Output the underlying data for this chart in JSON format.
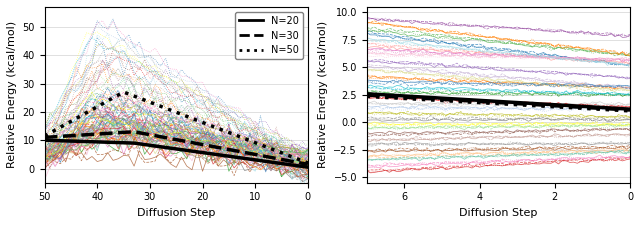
{
  "ylabel": "Relative Energy (kcal/mol)",
  "xlabel": "Diffusion Step",
  "left_xlim": [
    50,
    0
  ],
  "left_ylim": [
    -5,
    57
  ],
  "left_yticks": [
    0,
    10,
    20,
    30,
    40,
    50
  ],
  "left_xticks": [
    50,
    40,
    30,
    20,
    10,
    0
  ],
  "right_xlim": [
    7,
    0
  ],
  "right_ylim": [
    -5.5,
    10.5
  ],
  "right_yticks": [
    -5.0,
    -2.5,
    0.0,
    2.5,
    5.0,
    7.5,
    10.0
  ],
  "right_xticks": [
    6,
    4,
    2,
    0
  ],
  "n_molecules": 30,
  "mean_lw": 2.5,
  "mean_color": "black",
  "figsize": [
    6.4,
    2.25
  ],
  "dpi": 100
}
